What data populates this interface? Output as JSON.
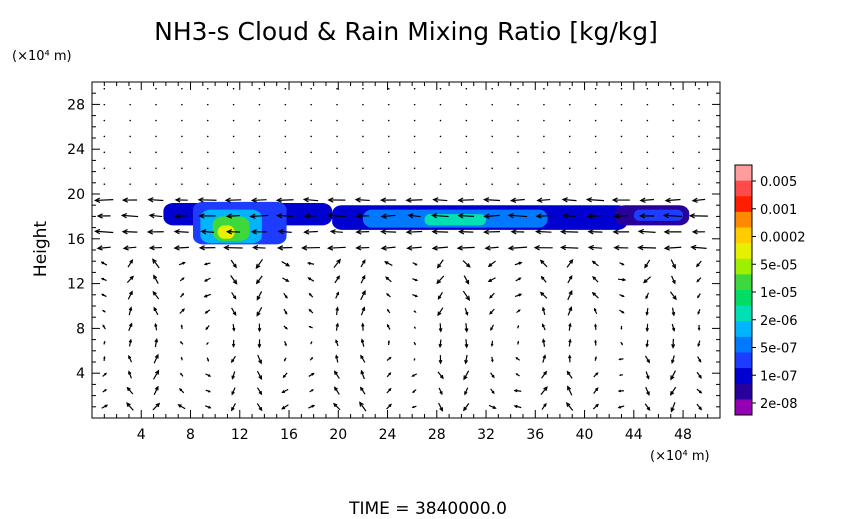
{
  "chart_data": {
    "type": "heatmap",
    "title": "NH3-s Cloud & Rain Mixing Ratio [kg/kg]",
    "xunit": "(×10⁴ m)",
    "yunit": "(×10⁴ m)",
    "ylabel": "Height",
    "xlim": [
      0,
      51
    ],
    "ylim": [
      0,
      30
    ],
    "xticks": [
      4,
      8,
      12,
      16,
      20,
      24,
      28,
      32,
      36,
      40,
      44,
      48
    ],
    "yticks": [
      4,
      8,
      12,
      16,
      20,
      24,
      28
    ],
    "time_label": "TIME = 3840000.0",
    "colorbar": {
      "labels": [
        "0.005",
        "0.001",
        "0.0002",
        "5e-05",
        "1e-05",
        "2e-06",
        "5e-07",
        "1e-07",
        "2e-08"
      ],
      "colors": [
        "#ff9c9c",
        "#ff4a4a",
        "#ff1e00",
        "#ff8a00",
        "#ffcc00",
        "#e6f000",
        "#9cf000",
        "#3cd83c",
        "#00dc64",
        "#00e0b4",
        "#00b4ff",
        "#0078ff",
        "#1e3cff",
        "#0000d0",
        "#28009c",
        "#9600b4"
      ]
    },
    "cloud_regions": [
      {
        "level": 2,
        "x": [
          5.8,
          19.5
        ],
        "y": [
          17.2,
          19.2
        ]
      },
      {
        "level": 3,
        "x": [
          8.2,
          15.8
        ],
        "y": [
          15.5,
          19.3
        ]
      },
      {
        "level": 5,
        "x": [
          8.8,
          13.8
        ],
        "y": [
          15.6,
          18.6
        ]
      },
      {
        "level": 8,
        "x": [
          9.8,
          12.8
        ],
        "y": [
          15.8,
          18.0
        ]
      },
      {
        "level": 10,
        "x": [
          10.2,
          11.6
        ],
        "y": [
          16.0,
          17.2
        ]
      },
      {
        "level": 2,
        "x": [
          19.5,
          43.5
        ],
        "y": [
          16.8,
          19.0
        ]
      },
      {
        "level": 4,
        "x": [
          22.0,
          37.0
        ],
        "y": [
          17.0,
          18.6
        ]
      },
      {
        "level": 6,
        "x": [
          27.0,
          32.0
        ],
        "y": [
          17.2,
          18.2
        ]
      },
      {
        "level": 1,
        "x": [
          42.5,
          48.5
        ],
        "y": [
          17.2,
          19.0
        ]
      },
      {
        "level": 3,
        "x": [
          44.0,
          48.0
        ],
        "y": [
          17.6,
          18.6
        ]
      }
    ]
  }
}
